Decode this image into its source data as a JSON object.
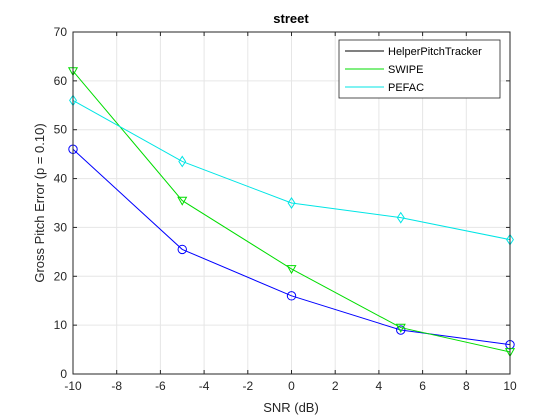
{
  "chart_data": {
    "type": "line",
    "title": "street",
    "xlabel": "SNR (dB)",
    "ylabel": "Gross Pitch Error (p = 0.10)",
    "xlim": [
      -10,
      10
    ],
    "ylim": [
      0,
      70
    ],
    "xticks": [
      -10,
      -8,
      -6,
      -4,
      -2,
      0,
      2,
      4,
      6,
      8,
      10
    ],
    "yticks": [
      0,
      10,
      20,
      30,
      40,
      50,
      60,
      70
    ],
    "grid": true,
    "legend_position": "top-right",
    "x": [
      -10,
      -5,
      0,
      5,
      10
    ],
    "series": [
      {
        "name": "HelperPitchTracker",
        "values": [
          46,
          25.5,
          16,
          9,
          6
        ],
        "color": "#0000ff",
        "marker": "circle",
        "legend_color": "#000000"
      },
      {
        "name": "SWIPE",
        "values": [
          62,
          35.5,
          21.5,
          9.5,
          4.5
        ],
        "color": "#00dd00",
        "marker": "triangle-down",
        "legend_color": "#00dd00"
      },
      {
        "name": "PEFAC",
        "values": [
          56,
          43.5,
          35,
          32,
          27.5
        ],
        "color": "#00e5e5",
        "marker": "diamond",
        "legend_color": "#00e5e5"
      }
    ]
  }
}
